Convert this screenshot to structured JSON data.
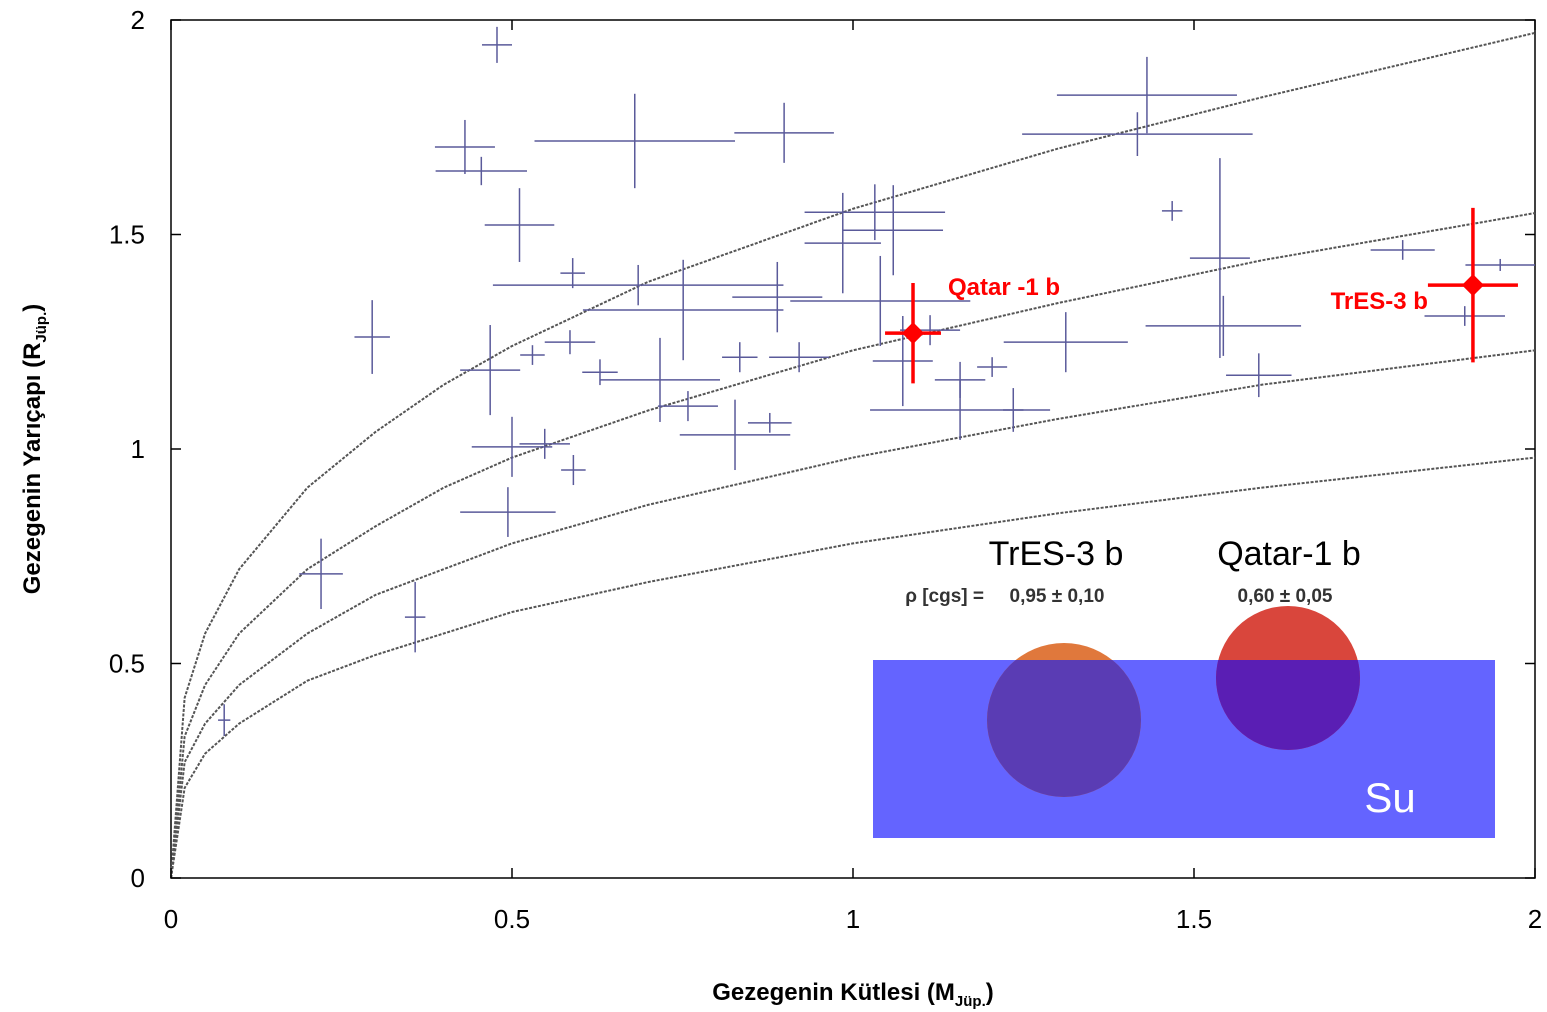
{
  "chart_data": {
    "type": "scatter",
    "xlabel": {
      "text": "Gezegenin Kütlesi (M",
      "sub": "Jüp.",
      "end": ")"
    },
    "ylabel": {
      "text": "Gezegenin Yarıçapı (R",
      "sub": "Jüp.",
      "end": ")"
    },
    "xlim": [
      0,
      2
    ],
    "ylim": [
      0,
      2
    ],
    "xticks": [
      0,
      0.5,
      1,
      1.5,
      2
    ],
    "yticks": [
      0,
      0.5,
      1,
      1.5,
      2
    ],
    "series": [
      {
        "color": "#5a5a9a",
        "x": [
          0.478,
          0.431,
          0.455,
          0.511,
          0.68,
          0.899,
          1.431,
          1.417,
          0.295,
          0.589,
          0.685,
          0.468,
          0.53,
          0.585,
          0.629,
          0.717,
          0.751,
          0.758,
          0.827,
          0.878,
          0.834,
          0.5,
          0.548,
          0.59,
          0.494,
          0.22,
          0.358,
          0.078,
          0.889,
          0.985,
          1.032,
          1.04,
          1.059,
          1.073,
          1.113,
          1.157,
          1.157,
          1.312,
          1.235,
          1.538,
          1.543,
          1.595,
          1.468,
          1.806,
          1.897,
          1.949,
          0.921,
          1.204
        ],
        "values": [
          1.942,
          1.704,
          1.648,
          1.522,
          1.718,
          1.737,
          1.825,
          1.734,
          1.261,
          1.41,
          1.382,
          1.184,
          1.219,
          1.249,
          1.179,
          1.161,
          1.324,
          1.1,
          1.033,
          1.061,
          1.214,
          1.005,
          1.012,
          0.951,
          0.853,
          0.709,
          0.608,
          0.368,
          1.354,
          1.48,
          1.552,
          1.345,
          1.51,
          1.205,
          1.277,
          1.091,
          1.161,
          1.249,
          1.091,
          1.445,
          1.287,
          1.172,
          1.555,
          1.464,
          1.31,
          1.429,
          1.214,
          1.191
        ],
        "xerr": [
          0.022,
          0.044,
          0.067,
          0.051,
          0.147,
          0.073,
          0.132,
          0.169,
          0.026,
          0.018,
          0.213,
          0.044,
          0.018,
          0.037,
          0.026,
          0.088,
          0.147,
          0.044,
          0.081,
          0.032,
          0.026,
          0.059,
          0.037,
          0.018,
          0.07,
          0.032,
          0.015,
          0.009,
          0.066,
          0.056,
          0.103,
          0.132,
          0.073,
          0.044,
          0.044,
          0.132,
          0.037,
          0.091,
          0.015,
          0.044,
          0.114,
          0.048,
          0.015,
          0.047,
          0.059,
          0.051,
          0.044,
          0.022
        ],
        "yerr": [
          0.042,
          0.063,
          0.033,
          0.086,
          0.11,
          0.07,
          0.089,
          0.051,
          0.086,
          0.035,
          0.047,
          0.105,
          0.023,
          0.028,
          0.03,
          0.098,
          0.117,
          0.035,
          0.082,
          0.023,
          0.035,
          0.07,
          0.035,
          0.035,
          0.058,
          0.082,
          0.082,
          0.037,
          0.082,
          0.117,
          0.065,
          0.105,
          0.105,
          0.105,
          0.035,
          0.07,
          0.042,
          0.07,
          0.051,
          0.233,
          0.07,
          0.051,
          0.023,
          0.023,
          0.023,
          0.014,
          0.035,
          0.023
        ]
      },
      {
        "color": "#ff0000",
        "labels": [
          "Qatar -1 b",
          "TrES-3 b"
        ],
        "x": [
          1.088,
          1.909
        ],
        "values": [
          1.27,
          1.382
        ],
        "xerr": [
          0.041,
          0.066
        ],
        "yerr": [
          0.117,
          0.18
        ]
      }
    ],
    "curve_color": "#555555",
    "curve_x": [
      0,
      0.02,
      0.05,
      0.1,
      0.2,
      0.3,
      0.4,
      0.5,
      0.7,
      1,
      1.3,
      1.6,
      2
    ],
    "curves": [
      [
        0,
        0.42,
        0.57,
        0.72,
        0.91,
        1.04,
        1.15,
        1.24,
        1.39,
        1.56,
        1.7,
        1.82,
        1.97
      ],
      [
        0,
        0.33,
        0.45,
        0.57,
        0.72,
        0.82,
        0.91,
        0.98,
        1.09,
        1.23,
        1.34,
        1.44,
        1.55
      ],
      [
        0,
        0.27,
        0.36,
        0.45,
        0.57,
        0.66,
        0.72,
        0.78,
        0.87,
        0.98,
        1.07,
        1.15,
        1.23
      ],
      [
        0,
        0.21,
        0.29,
        0.36,
        0.46,
        0.52,
        0.57,
        0.62,
        0.69,
        0.78,
        0.85,
        0.91,
        0.98
      ]
    ],
    "inset": {
      "names": [
        "TrES-3 b",
        "Qatar-1 b"
      ],
      "density_label": "ρ [cgs] =",
      "densities": [
        "0,95 ± 0,10",
        "0,60 ± 0,05"
      ],
      "water": "Su"
    }
  }
}
